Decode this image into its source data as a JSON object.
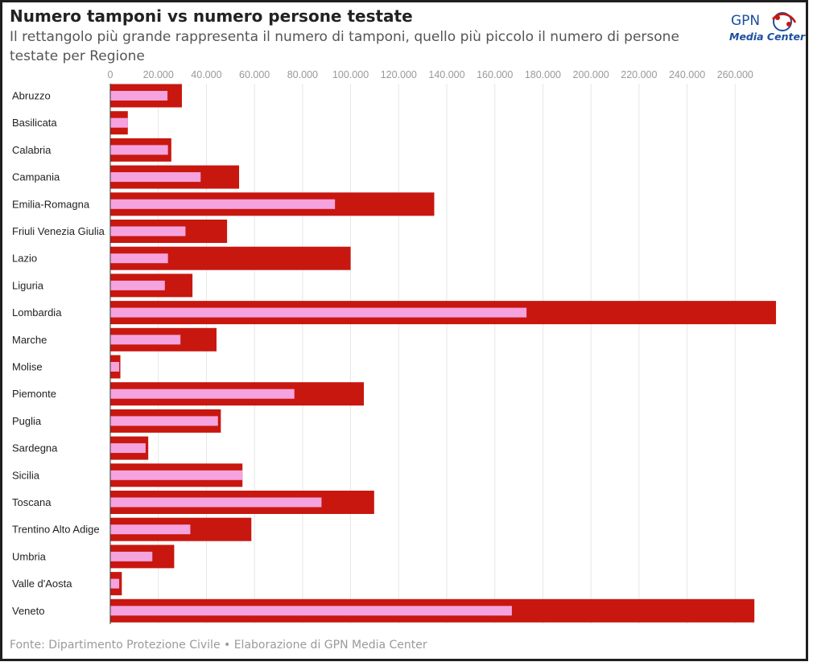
{
  "header": {
    "title": "Numero tamponi vs numero persone testate",
    "subtitle": "Il rettangolo più grande rappresenta il numero di tamponi, quello più piccolo il numero di persone testate per Regione"
  },
  "logo": {
    "line1": "GPN",
    "line2": "Media Center"
  },
  "footer": {
    "source": "Fonte: Dipartimento Protezione Civile • Elaborazione di GPN Media Center"
  },
  "colors": {
    "tamponi": "#c8170f",
    "persone": "#f5a3de",
    "grid": "#e6e6e6"
  },
  "chart_data": {
    "type": "bar",
    "orientation": "horizontal",
    "title": "Numero tamponi vs numero persone testate",
    "subtitle": "Il rettangolo più grande rappresenta il numero di tamponi, quello più piccolo il numero di persone testate per Regione",
    "xlim": [
      0,
      280000
    ],
    "ticks": [
      0,
      20000,
      40000,
      60000,
      80000,
      100000,
      120000,
      140000,
      160000,
      180000,
      200000,
      220000,
      240000,
      260000
    ],
    "tick_labels": [
      "0",
      "20.000",
      "40.000",
      "60.000",
      "80.000",
      "100.000",
      "120.000",
      "140.000",
      "160.000",
      "180.000",
      "200.000",
      "220.000",
      "240.000",
      "260.000"
    ],
    "grid": true,
    "legend": "none",
    "categories": [
      "Abruzzo",
      "Basilicata",
      "Calabria",
      "Campania",
      "Emilia-Romagna",
      "Friuli Venezia Giulia",
      "Lazio",
      "Liguria",
      "Lombardia",
      "Marche",
      "Molise",
      "Piemonte",
      "Puglia",
      "Sardegna",
      "Sicilia",
      "Toscana",
      "Trentino Alto Adige",
      "Umbria",
      "Valle d'Aosta",
      "Veneto"
    ],
    "series": [
      {
        "values": [
          29800,
          7300,
          25400,
          53600,
          134800,
          48600,
          100000,
          34200,
          277000,
          44200,
          4200,
          105500,
          46000,
          15800,
          55000,
          109800,
          58700,
          26600,
          4800,
          268000
        ]
      },
      {
        "values": [
          23800,
          7300,
          24000,
          37600,
          93500,
          31300,
          24000,
          22700,
          173200,
          29200,
          3700,
          76600,
          44800,
          14700,
          55000,
          87900,
          33300,
          17500,
          3700,
          167100
        ]
      }
    ]
  }
}
